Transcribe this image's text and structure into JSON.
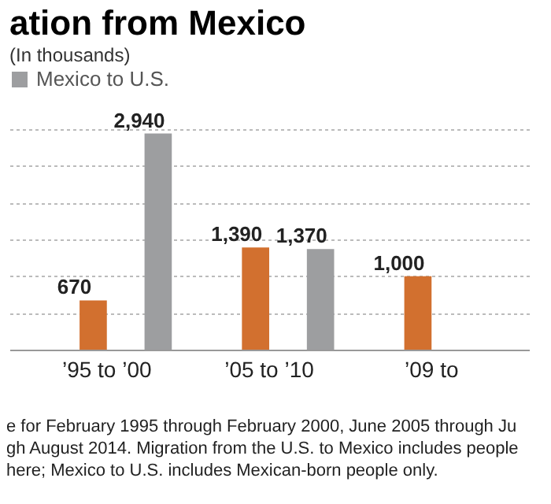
{
  "chart_data": {
    "type": "bar",
    "title": "ation from Mexico",
    "subtitle": "(In thousands)",
    "categories": [
      "’95 to ’00",
      "’05 to ’10",
      "’09 to"
    ],
    "series": [
      {
        "color": "#d2702f",
        "values": [
          670,
          1390,
          1000
        ],
        "value_labels": [
          "670",
          "1,390",
          "1,000"
        ]
      },
      {
        "name": "Mexico to U.S.",
        "color": "#9d9ea0",
        "values": [
          2940,
          1370,
          null
        ],
        "value_labels": [
          "2,940",
          "1,370",
          null
        ]
      }
    ],
    "ylim": [
      0,
      3000
    ],
    "grid": "y",
    "tick_labels": "x",
    "legend": "top",
    "annotations": [
      "e for February 1995 through February 2000, June 2005 through Ju",
      "gh August 2014. Migration from the U.S. to Mexico includes people",
      "here; Mexico to U.S. includes Mexican-born people only."
    ]
  }
}
